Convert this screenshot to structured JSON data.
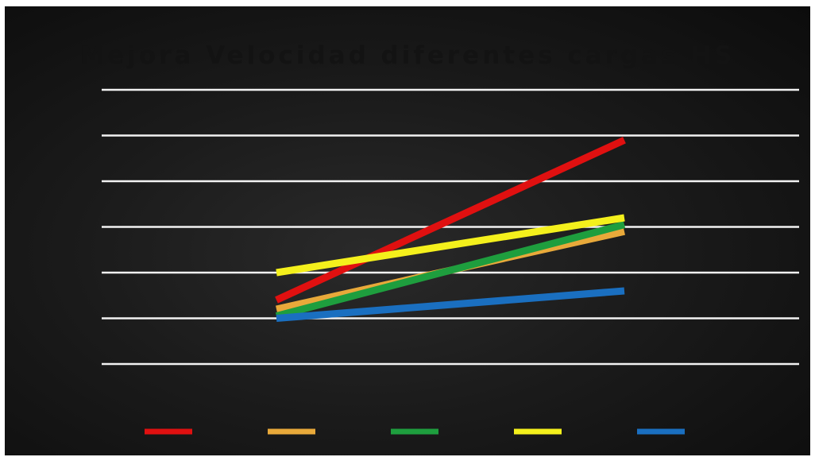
{
  "chart_data": {
    "type": "line",
    "title": "Mejora Velocidad diferentes cargas HS",
    "x": [
      0,
      1
    ],
    "ylim": [
      0,
      6
    ],
    "yticks": [
      0,
      1,
      2,
      3,
      4,
      5,
      6
    ],
    "grid": true,
    "legend": "bottom",
    "background": "#141414",
    "grid_color": "#f2f2f2",
    "series": [
      {
        "color": "#e01010",
        "values": [
          1.4,
          4.9
        ]
      },
      {
        "color": "#e8a93a",
        "values": [
          1.2,
          2.9
        ]
      },
      {
        "color": "#1e9e3e",
        "values": [
          1.05,
          3.05
        ]
      },
      {
        "color": "#f4f01c",
        "values": [
          2.0,
          3.2
        ]
      },
      {
        "color": "#1a6fc0",
        "values": [
          1.0,
          1.6
        ]
      }
    ]
  }
}
